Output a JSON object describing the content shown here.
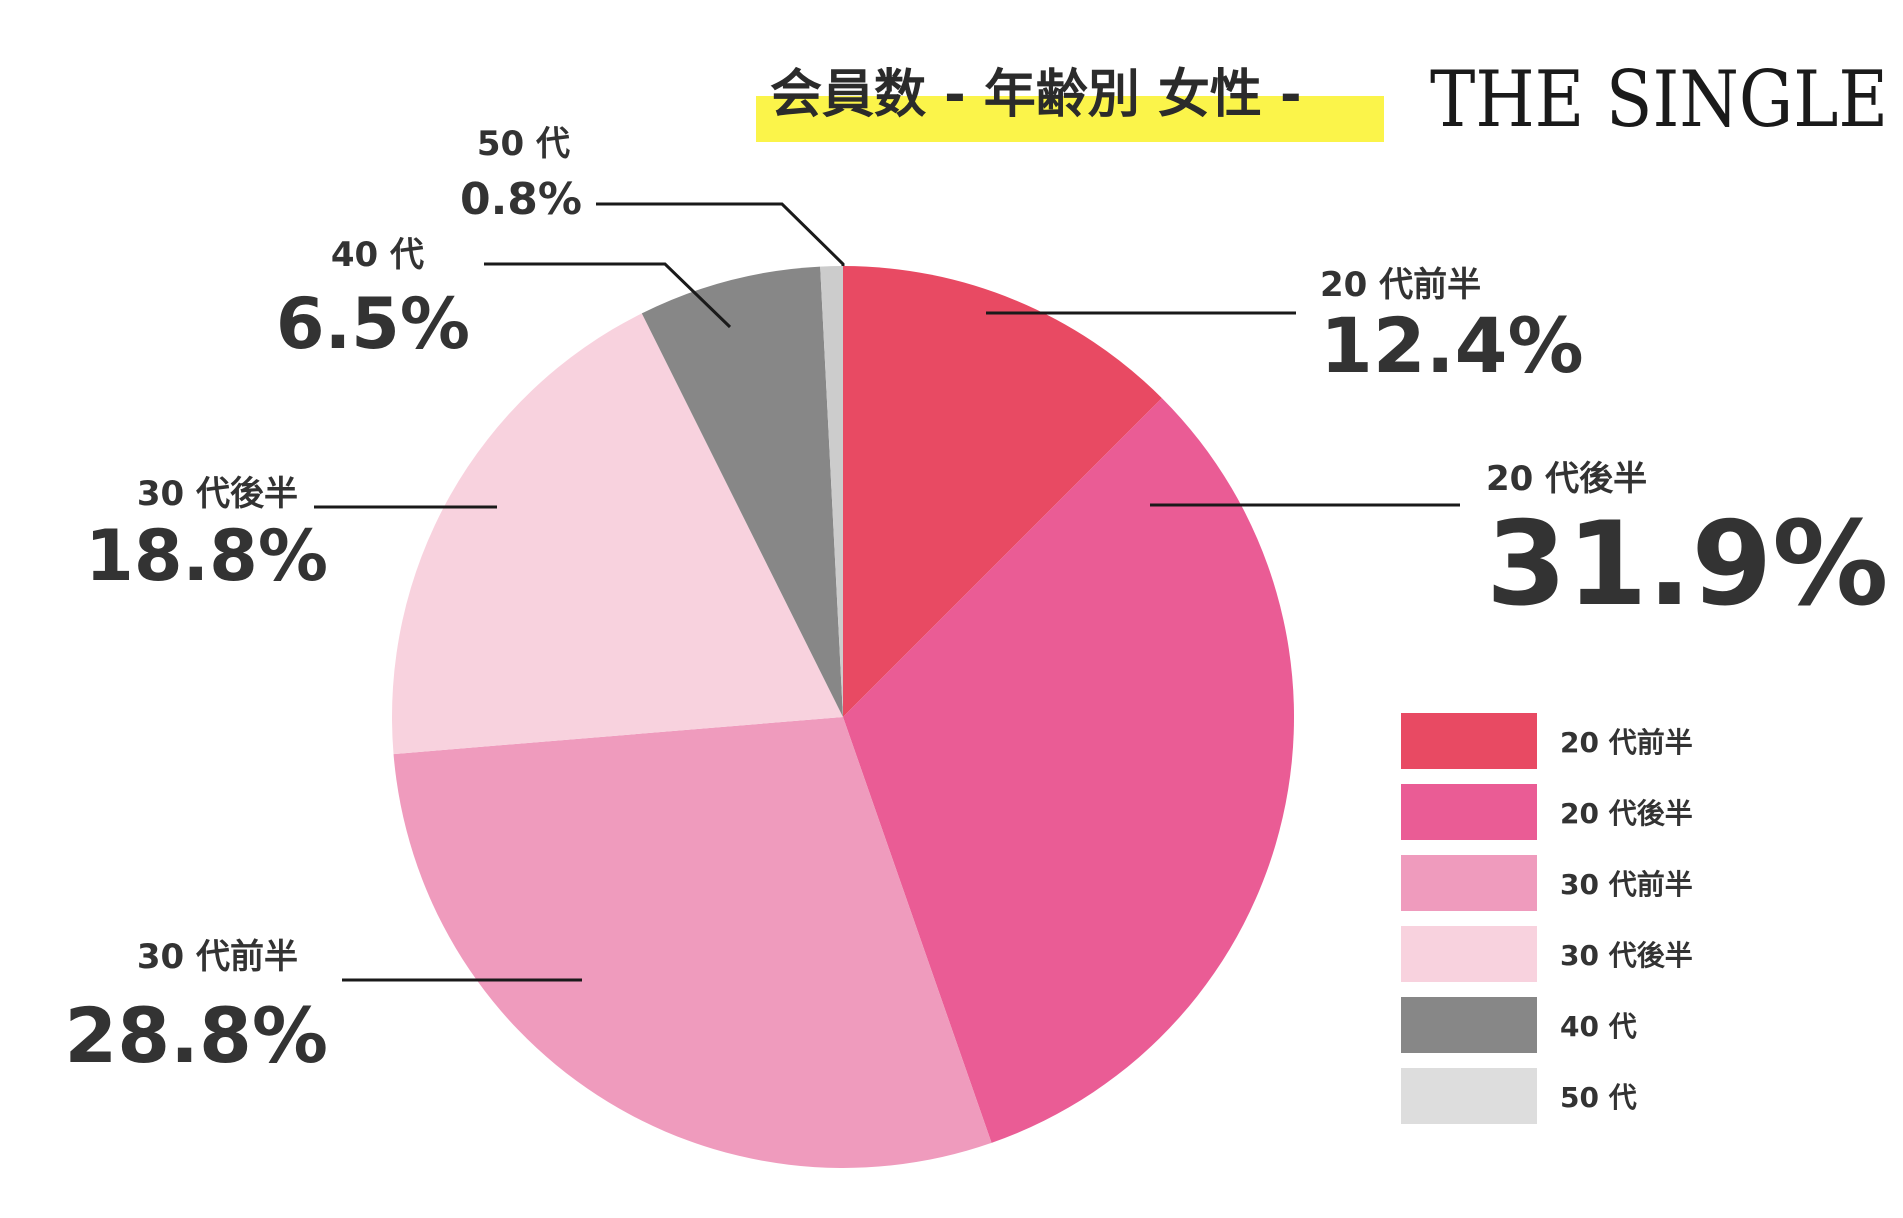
{
  "brand": "THE SINGLE",
  "chart_data": {
    "type": "pie",
    "title": "会員数 - 年齢別 女性 -",
    "unit": "%",
    "legend_position": "right",
    "slices": [
      {
        "label": "20 代前半",
        "value": 12.4,
        "display": "12.4%",
        "color": "#e84a63"
      },
      {
        "label": "20 代後半",
        "value": 31.9,
        "display": "31.9%",
        "color": "#ea5c95"
      },
      {
        "label": "30 代前半",
        "value": 28.8,
        "display": "28.8%",
        "color": "#ef9bbd"
      },
      {
        "label": "30 代後半",
        "value": 18.8,
        "display": "18.8%",
        "color": "#f8d2de"
      },
      {
        "label": "40 代",
        "value": 6.5,
        "display": "6.5%",
        "color": "#878787"
      },
      {
        "label": "50 代",
        "value": 0.8,
        "display": "0.8%",
        "color": "#cccccc"
      }
    ],
    "legend": [
      {
        "label": "20 代前半",
        "color": "#e84a63"
      },
      {
        "label": "20 代後半",
        "color": "#ea5c95"
      },
      {
        "label": "30 代前半",
        "color": "#ef9bbd"
      },
      {
        "label": "30 代後半",
        "color": "#f8d2de"
      },
      {
        "label": "40 代",
        "color": "#878787"
      },
      {
        "label": "50 代",
        "color": "#dddddd"
      }
    ],
    "highlight_color": "#fbf44a"
  }
}
